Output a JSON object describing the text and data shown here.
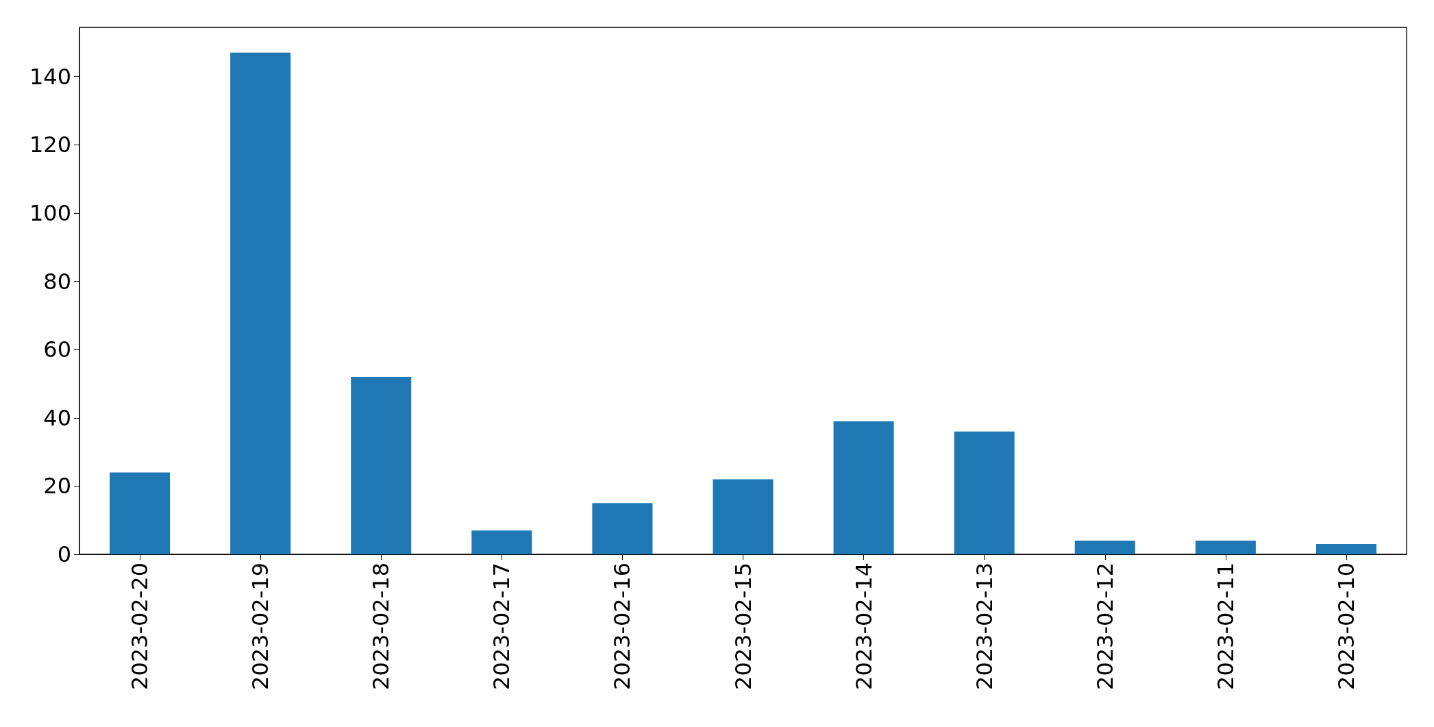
{
  "chart_data": {
    "type": "bar",
    "categories": [
      "2023-02-20",
      "2023-02-19",
      "2023-02-18",
      "2023-02-17",
      "2023-02-16",
      "2023-02-15",
      "2023-02-14",
      "2023-02-13",
      "2023-02-12",
      "2023-02-11",
      "2023-02-10"
    ],
    "values": [
      24,
      147,
      52,
      7,
      15,
      22,
      39,
      36,
      4,
      4,
      3
    ],
    "color": "#1f77b4",
    "ylim": [
      0,
      154.4
    ],
    "yticks": [
      0,
      20,
      40,
      60,
      80,
      100,
      120,
      140
    ],
    "grid": false
  }
}
